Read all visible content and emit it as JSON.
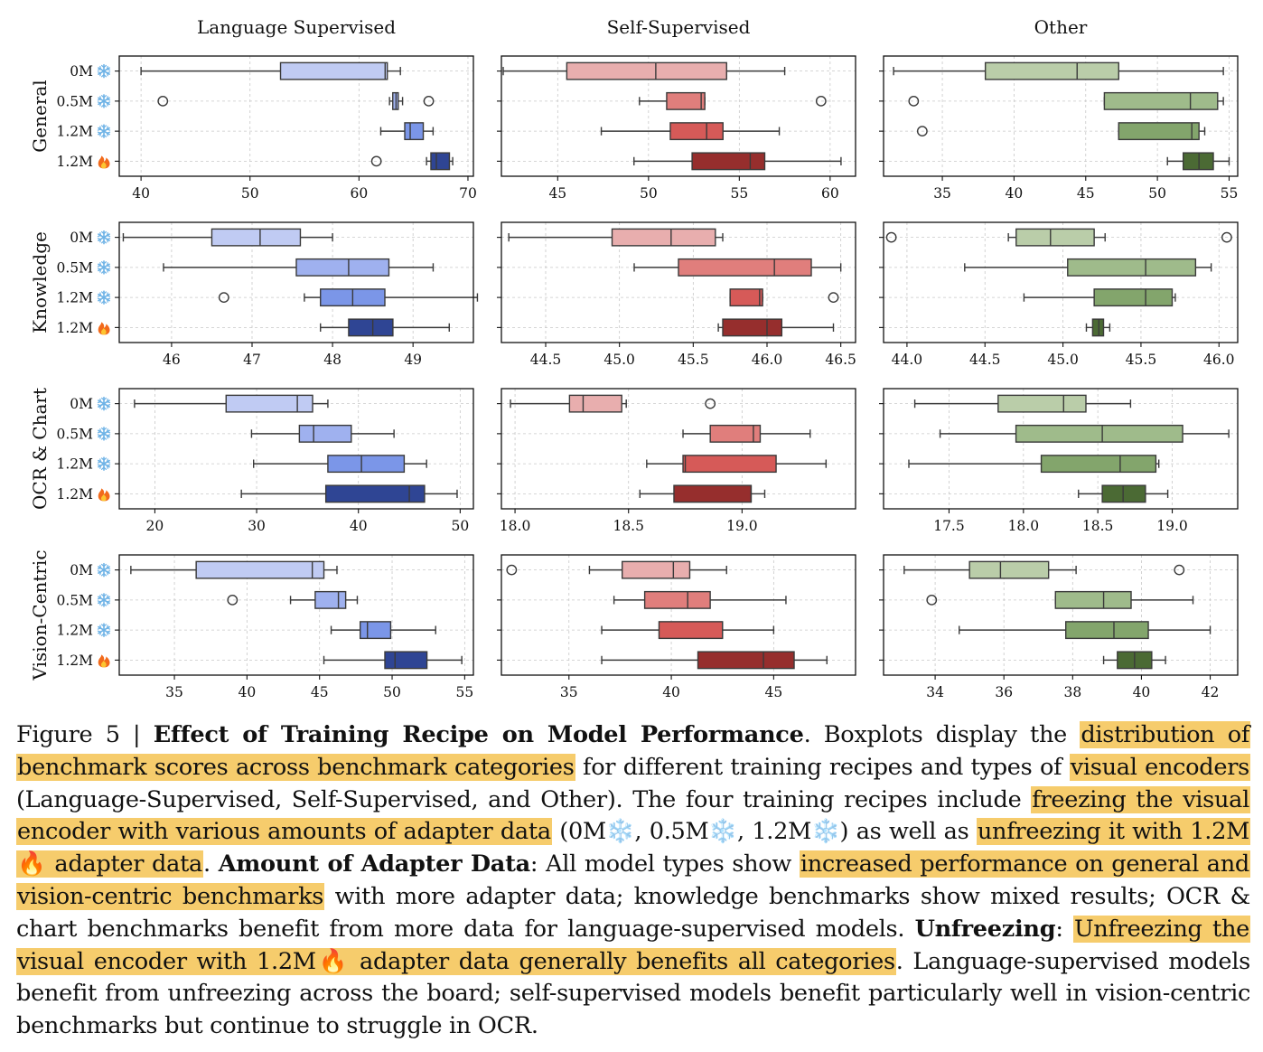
{
  "figure": {
    "columns": [
      "Language Supervised",
      "Self-Supervised",
      "Other"
    ],
    "rows": [
      "General",
      "Knowledge",
      "OCR & Chart",
      "Vision-Centric"
    ],
    "recipes": [
      {
        "label": "0M",
        "icon": "snowflake-icon"
      },
      {
        "label": "0.5M",
        "icon": "snowflake-icon"
      },
      {
        "label": "1.2M",
        "icon": "snowflake-icon"
      },
      {
        "label": "1.2M",
        "icon": "fire-icon"
      }
    ],
    "colors": {
      "Language Supervised": [
        "#c0cbf3",
        "#9fb1ef",
        "#7b96e8",
        "#2f4594"
      ],
      "Self-Supervised": [
        "#e8aeae",
        "#e07e7c",
        "#d65a58",
        "#962e2d"
      ],
      "Other": [
        "#bacda9",
        "#9fbb8b",
        "#83a56c",
        "#4b6a34"
      ]
    }
  },
  "chart_data": [
    {
      "type": "boxplot",
      "row": "General",
      "column": "Language Supervised",
      "xlim": [
        38,
        70.5
      ],
      "xticks": [
        "40",
        "50",
        "60",
        "70"
      ],
      "xtick_values": [
        40,
        50,
        60,
        70
      ],
      "boxes": [
        {
          "recipe": "0M",
          "whislo": 40.0,
          "q1": 52.8,
          "med": 62.4,
          "q3": 62.6,
          "whishi": 63.8,
          "fliers": []
        },
        {
          "recipe": "0.5M",
          "whislo": 62.8,
          "q1": 63.1,
          "med": 63.4,
          "q3": 63.6,
          "whishi": 64.0,
          "fliers": [
            42.0,
            66.4
          ]
        },
        {
          "recipe": "1.2M",
          "whislo": 62.0,
          "q1": 64.2,
          "med": 64.7,
          "q3": 65.9,
          "whishi": 66.8,
          "fliers": []
        },
        {
          "recipe": "1.2M unfrozen",
          "whislo": 66.2,
          "q1": 66.6,
          "med": 67.1,
          "q3": 68.3,
          "whishi": 68.6,
          "fliers": [
            61.6
          ]
        }
      ]
    },
    {
      "type": "boxplot",
      "row": "General",
      "column": "Self-Supervised",
      "xlim": [
        41.9,
        61.4
      ],
      "xticks": [
        "45",
        "50",
        "55",
        "60"
      ],
      "xtick_values": [
        45,
        50,
        55,
        60
      ],
      "boxes": [
        {
          "recipe": "0M",
          "whislo": 42.0,
          "q1": 45.5,
          "med": 50.4,
          "q3": 54.3,
          "whishi": 57.5,
          "fliers": []
        },
        {
          "recipe": "0.5M",
          "whislo": 49.5,
          "q1": 51.0,
          "med": 52.9,
          "q3": 53.1,
          "whishi": 53.1,
          "fliers": [
            59.5
          ]
        },
        {
          "recipe": "1.2M",
          "whislo": 47.4,
          "q1": 51.2,
          "med": 53.2,
          "q3": 54.1,
          "whishi": 57.2,
          "fliers": []
        },
        {
          "recipe": "1.2M unfrozen",
          "whislo": 49.2,
          "q1": 52.4,
          "med": 55.6,
          "q3": 56.4,
          "whishi": 60.6,
          "fliers": []
        }
      ]
    },
    {
      "type": "boxplot",
      "row": "General",
      "column": "Other",
      "xlim": [
        30.9,
        55.6
      ],
      "xticks": [
        "35",
        "40",
        "45",
        "50",
        "55"
      ],
      "xtick_values": [
        35,
        40,
        45,
        50,
        55
      ],
      "boxes": [
        {
          "recipe": "0M",
          "whislo": 31.6,
          "q1": 38.0,
          "med": 44.4,
          "q3": 47.3,
          "whishi": 54.6,
          "fliers": []
        },
        {
          "recipe": "0.5M",
          "whislo": 46.3,
          "q1": 46.3,
          "med": 52.3,
          "q3": 54.2,
          "whishi": 54.6,
          "fliers": [
            33.0
          ]
        },
        {
          "recipe": "1.2M",
          "whislo": 47.3,
          "q1": 47.3,
          "med": 52.4,
          "q3": 52.9,
          "whishi": 53.3,
          "fliers": [
            33.6
          ]
        },
        {
          "recipe": "1.2M unfrozen",
          "whislo": 50.7,
          "q1": 51.8,
          "med": 52.9,
          "q3": 53.9,
          "whishi": 55.0,
          "fliers": []
        }
      ]
    },
    {
      "type": "boxplot",
      "row": "Knowledge",
      "column": "Language Supervised",
      "xlim": [
        45.35,
        49.75
      ],
      "xticks": [
        "46",
        "47",
        "48",
        "49"
      ],
      "xtick_values": [
        46,
        47,
        48,
        49
      ],
      "boxes": [
        {
          "recipe": "0M",
          "whislo": 45.4,
          "q1": 46.5,
          "med": 47.1,
          "q3": 47.6,
          "whishi": 48.0,
          "fliers": []
        },
        {
          "recipe": "0.5M",
          "whislo": 45.9,
          "q1": 47.55,
          "med": 48.2,
          "q3": 48.7,
          "whishi": 49.25,
          "fliers": []
        },
        {
          "recipe": "1.2M",
          "whislo": 47.65,
          "q1": 47.85,
          "med": 48.25,
          "q3": 48.65,
          "whishi": 49.8,
          "fliers": [
            46.65
          ]
        },
        {
          "recipe": "1.2M unfrozen",
          "whislo": 47.85,
          "q1": 48.2,
          "med": 48.5,
          "q3": 48.75,
          "whishi": 49.45,
          "fliers": []
        }
      ]
    },
    {
      "type": "boxplot",
      "row": "Knowledge",
      "column": "Self-Supervised",
      "xlim": [
        44.2,
        46.6
      ],
      "xticks": [
        "44.5",
        "45.0",
        "45.5",
        "46.0",
        "46.5"
      ],
      "xtick_values": [
        44.5,
        45.0,
        45.5,
        46.0,
        46.5
      ],
      "boxes": [
        {
          "recipe": "0M",
          "whislo": 44.25,
          "q1": 44.95,
          "med": 45.35,
          "q3": 45.65,
          "whishi": 45.7,
          "fliers": []
        },
        {
          "recipe": "0.5M",
          "whislo": 45.1,
          "q1": 45.4,
          "med": 46.05,
          "q3": 46.3,
          "whishi": 46.5,
          "fliers": []
        },
        {
          "recipe": "1.2M",
          "whislo": 45.75,
          "q1": 45.75,
          "med": 45.95,
          "q3": 45.97,
          "whishi": 45.97,
          "fliers": [
            46.45
          ]
        },
        {
          "recipe": "1.2M unfrozen",
          "whislo": 45.67,
          "q1": 45.7,
          "med": 46.0,
          "q3": 46.1,
          "whishi": 46.45,
          "fliers": []
        }
      ]
    },
    {
      "type": "boxplot",
      "row": "Knowledge",
      "column": "Other",
      "xlim": [
        43.85,
        46.12
      ],
      "xticks": [
        "44.0",
        "44.5",
        "45.0",
        "45.5",
        "46.0"
      ],
      "xtick_values": [
        44.0,
        44.5,
        45.0,
        45.5,
        46.0
      ],
      "boxes": [
        {
          "recipe": "0M",
          "whislo": 44.65,
          "q1": 44.7,
          "med": 44.92,
          "q3": 45.2,
          "whishi": 45.27,
          "fliers": [
            43.9,
            46.05
          ]
        },
        {
          "recipe": "0.5M",
          "whislo": 44.37,
          "q1": 45.03,
          "med": 45.53,
          "q3": 45.85,
          "whishi": 45.95,
          "fliers": []
        },
        {
          "recipe": "1.2M",
          "whislo": 44.75,
          "q1": 45.2,
          "med": 45.53,
          "q3": 45.7,
          "whishi": 45.72,
          "fliers": []
        },
        {
          "recipe": "1.2M unfrozen",
          "whislo": 45.15,
          "q1": 45.19,
          "med": 45.23,
          "q3": 45.26,
          "whishi": 45.3,
          "fliers": []
        }
      ]
    },
    {
      "type": "boxplot",
      "row": "OCR & Chart",
      "column": "Language Supervised",
      "xlim": [
        16.5,
        51.3
      ],
      "xticks": [
        "20",
        "30",
        "40",
        "50"
      ],
      "xtick_values": [
        20,
        30,
        40,
        50
      ],
      "boxes": [
        {
          "recipe": "0M",
          "whislo": 18.0,
          "q1": 27.0,
          "med": 34.0,
          "q3": 35.5,
          "whishi": 37.0,
          "fliers": []
        },
        {
          "recipe": "0.5M",
          "whislo": 29.5,
          "q1": 34.2,
          "med": 35.6,
          "q3": 39.3,
          "whishi": 43.5,
          "fliers": []
        },
        {
          "recipe": "1.2M",
          "whislo": 29.7,
          "q1": 37.0,
          "med": 40.3,
          "q3": 44.5,
          "whishi": 46.7,
          "fliers": []
        },
        {
          "recipe": "1.2M unfrozen",
          "whislo": 28.5,
          "q1": 36.8,
          "med": 45.0,
          "q3": 46.5,
          "whishi": 49.7,
          "fliers": []
        }
      ]
    },
    {
      "type": "boxplot",
      "row": "OCR & Chart",
      "column": "Self-Supervised",
      "xlim": [
        17.94,
        19.5
      ],
      "xticks": [
        "18.0",
        "18.5",
        "19.0"
      ],
      "xtick_values": [
        18.0,
        18.5,
        19.0
      ],
      "boxes": [
        {
          "recipe": "0M",
          "whislo": 17.98,
          "q1": 18.24,
          "med": 18.3,
          "q3": 18.47,
          "whishi": 18.49,
          "fliers": [
            18.86
          ]
        },
        {
          "recipe": "0.5M",
          "whislo": 18.74,
          "q1": 18.86,
          "med": 19.05,
          "q3": 19.08,
          "whishi": 19.3,
          "fliers": []
        },
        {
          "recipe": "1.2M",
          "whislo": 18.58,
          "q1": 18.74,
          "med": 18.75,
          "q3": 19.15,
          "whishi": 19.37,
          "fliers": []
        },
        {
          "recipe": "1.2M unfrozen",
          "whislo": 18.55,
          "q1": 18.7,
          "med": 19.04,
          "q3": 19.04,
          "whishi": 19.1,
          "fliers": []
        }
      ]
    },
    {
      "type": "boxplot",
      "row": "OCR & Chart",
      "column": "Other",
      "xlim": [
        17.06,
        19.44
      ],
      "xticks": [
        "17.5",
        "18.0",
        "18.5",
        "19.0"
      ],
      "xtick_values": [
        17.5,
        18.0,
        18.5,
        19.0
      ],
      "boxes": [
        {
          "recipe": "0M",
          "whislo": 17.27,
          "q1": 17.83,
          "med": 18.27,
          "q3": 18.42,
          "whishi": 18.72,
          "fliers": []
        },
        {
          "recipe": "0.5M",
          "whislo": 17.44,
          "q1": 17.95,
          "med": 18.53,
          "q3": 19.07,
          "whishi": 19.38,
          "fliers": []
        },
        {
          "recipe": "1.2M",
          "whislo": 17.23,
          "q1": 18.12,
          "med": 18.65,
          "q3": 18.89,
          "whishi": 18.91,
          "fliers": []
        },
        {
          "recipe": "1.2M unfrozen",
          "whislo": 18.37,
          "q1": 18.53,
          "med": 18.67,
          "q3": 18.82,
          "whishi": 18.97,
          "fliers": []
        }
      ]
    },
    {
      "type": "boxplot",
      "row": "Vision-Centric",
      "column": "Language Supervised",
      "xlim": [
        31.2,
        55.6
      ],
      "xticks": [
        "35",
        "40",
        "45",
        "50",
        "55"
      ],
      "xtick_values": [
        35,
        40,
        45,
        50,
        55
      ],
      "boxes": [
        {
          "recipe": "0M",
          "whislo": 32.0,
          "q1": 36.5,
          "med": 44.5,
          "q3": 45.3,
          "whishi": 46.2,
          "fliers": []
        },
        {
          "recipe": "0.5M",
          "whislo": 43.0,
          "q1": 44.7,
          "med": 46.3,
          "q3": 46.8,
          "whishi": 47.6,
          "fliers": [
            39.0
          ]
        },
        {
          "recipe": "1.2M",
          "whislo": 45.8,
          "q1": 47.8,
          "med": 48.3,
          "q3": 49.9,
          "whishi": 53.0,
          "fliers": []
        },
        {
          "recipe": "1.2M unfrozen",
          "whislo": 45.3,
          "q1": 49.5,
          "med": 50.2,
          "q3": 52.4,
          "whishi": 54.8,
          "fliers": []
        }
      ]
    },
    {
      "type": "boxplot",
      "row": "Vision-Centric",
      "column": "Self-Supervised",
      "xlim": [
        31.7,
        49.0
      ],
      "xticks": [
        "35",
        "40",
        "45"
      ],
      "xtick_values": [
        35,
        40,
        45
      ],
      "boxes": [
        {
          "recipe": "0M",
          "whislo": 36.0,
          "q1": 37.6,
          "med": 40.1,
          "q3": 40.9,
          "whishi": 42.7,
          "fliers": [
            32.2
          ]
        },
        {
          "recipe": "0.5M",
          "whislo": 37.2,
          "q1": 38.7,
          "med": 40.8,
          "q3": 41.9,
          "whishi": 45.6,
          "fliers": []
        },
        {
          "recipe": "1.2M",
          "whislo": 36.6,
          "q1": 39.4,
          "med": 42.5,
          "q3": 42.5,
          "whishi": 45.0,
          "fliers": []
        },
        {
          "recipe": "1.2M unfrozen",
          "whislo": 36.6,
          "q1": 41.3,
          "med": 44.5,
          "q3": 46.0,
          "whishi": 47.6,
          "fliers": []
        }
      ]
    },
    {
      "type": "boxplot",
      "row": "Vision-Centric",
      "column": "Other",
      "xlim": [
        32.5,
        42.8
      ],
      "xticks": [
        "34",
        "36",
        "38",
        "40",
        "42"
      ],
      "xtick_values": [
        34,
        36,
        38,
        40,
        42
      ],
      "boxes": [
        {
          "recipe": "0M",
          "whislo": 33.1,
          "q1": 35.0,
          "med": 35.9,
          "q3": 37.3,
          "whishi": 38.1,
          "fliers": [
            41.1
          ]
        },
        {
          "recipe": "0.5M",
          "whislo": 37.5,
          "q1": 37.5,
          "med": 38.9,
          "q3": 39.7,
          "whishi": 41.5,
          "fliers": [
            33.9
          ]
        },
        {
          "recipe": "1.2M",
          "whislo": 34.7,
          "q1": 37.8,
          "med": 39.2,
          "q3": 40.2,
          "whishi": 42.0,
          "fliers": []
        },
        {
          "recipe": "1.2M unfrozen",
          "whislo": 38.9,
          "q1": 39.3,
          "med": 39.8,
          "q3": 40.3,
          "whishi": 40.7,
          "fliers": []
        }
      ]
    }
  ],
  "caption": {
    "segments": [
      {
        "text": "Figure 5 | ",
        "style": "plain"
      },
      {
        "text": "Effect of Training Recipe on Model Performance",
        "style": "bold"
      },
      {
        "text": ". Boxplots display the ",
        "style": "plain"
      },
      {
        "text": "distribution of benchmark scores across benchmark categories",
        "style": "highlight"
      },
      {
        "text": " for different training recipes and types of ",
        "style": "plain"
      },
      {
        "text": "visual encoders",
        "style": "highlight"
      },
      {
        "text": " (Language-Supervised, Self-Supervised, and Other). The four training recipes include ",
        "style": "plain"
      },
      {
        "text": "freezing the visual encoder with various amounts of adapter data",
        "style": "highlight"
      },
      {
        "text": " (0M❄️, 0.5M❄️, 1.2M❄️) as well as ",
        "style": "plain"
      },
      {
        "text": "unfreezing it with 1.2M🔥 adapter data",
        "style": "highlight"
      },
      {
        "text": ". ",
        "style": "plain"
      },
      {
        "text": "Amount of Adapter Data",
        "style": "bold"
      },
      {
        "text": ": All model types show ",
        "style": "plain"
      },
      {
        "text": "increased performance on general and vision-centric benchmarks",
        "style": "highlight"
      },
      {
        "text": " with more adapter data; knowledge benchmarks show mixed results; OCR & chart benchmarks benefit from more data for language-supervised models. ",
        "style": "plain"
      },
      {
        "text": "Unfreezing",
        "style": "bold"
      },
      {
        "text": ": ",
        "style": "plain"
      },
      {
        "text": "Unfreezing the visual encoder with 1.2M🔥 adapter data generally benefits all categories",
        "style": "highlight"
      },
      {
        "text": ". Language-supervised models benefit from unfreezing across the board; self-supervised models benefit particularly well in vision-centric benchmarks but continue to struggle in OCR.",
        "style": "plain"
      }
    ]
  }
}
